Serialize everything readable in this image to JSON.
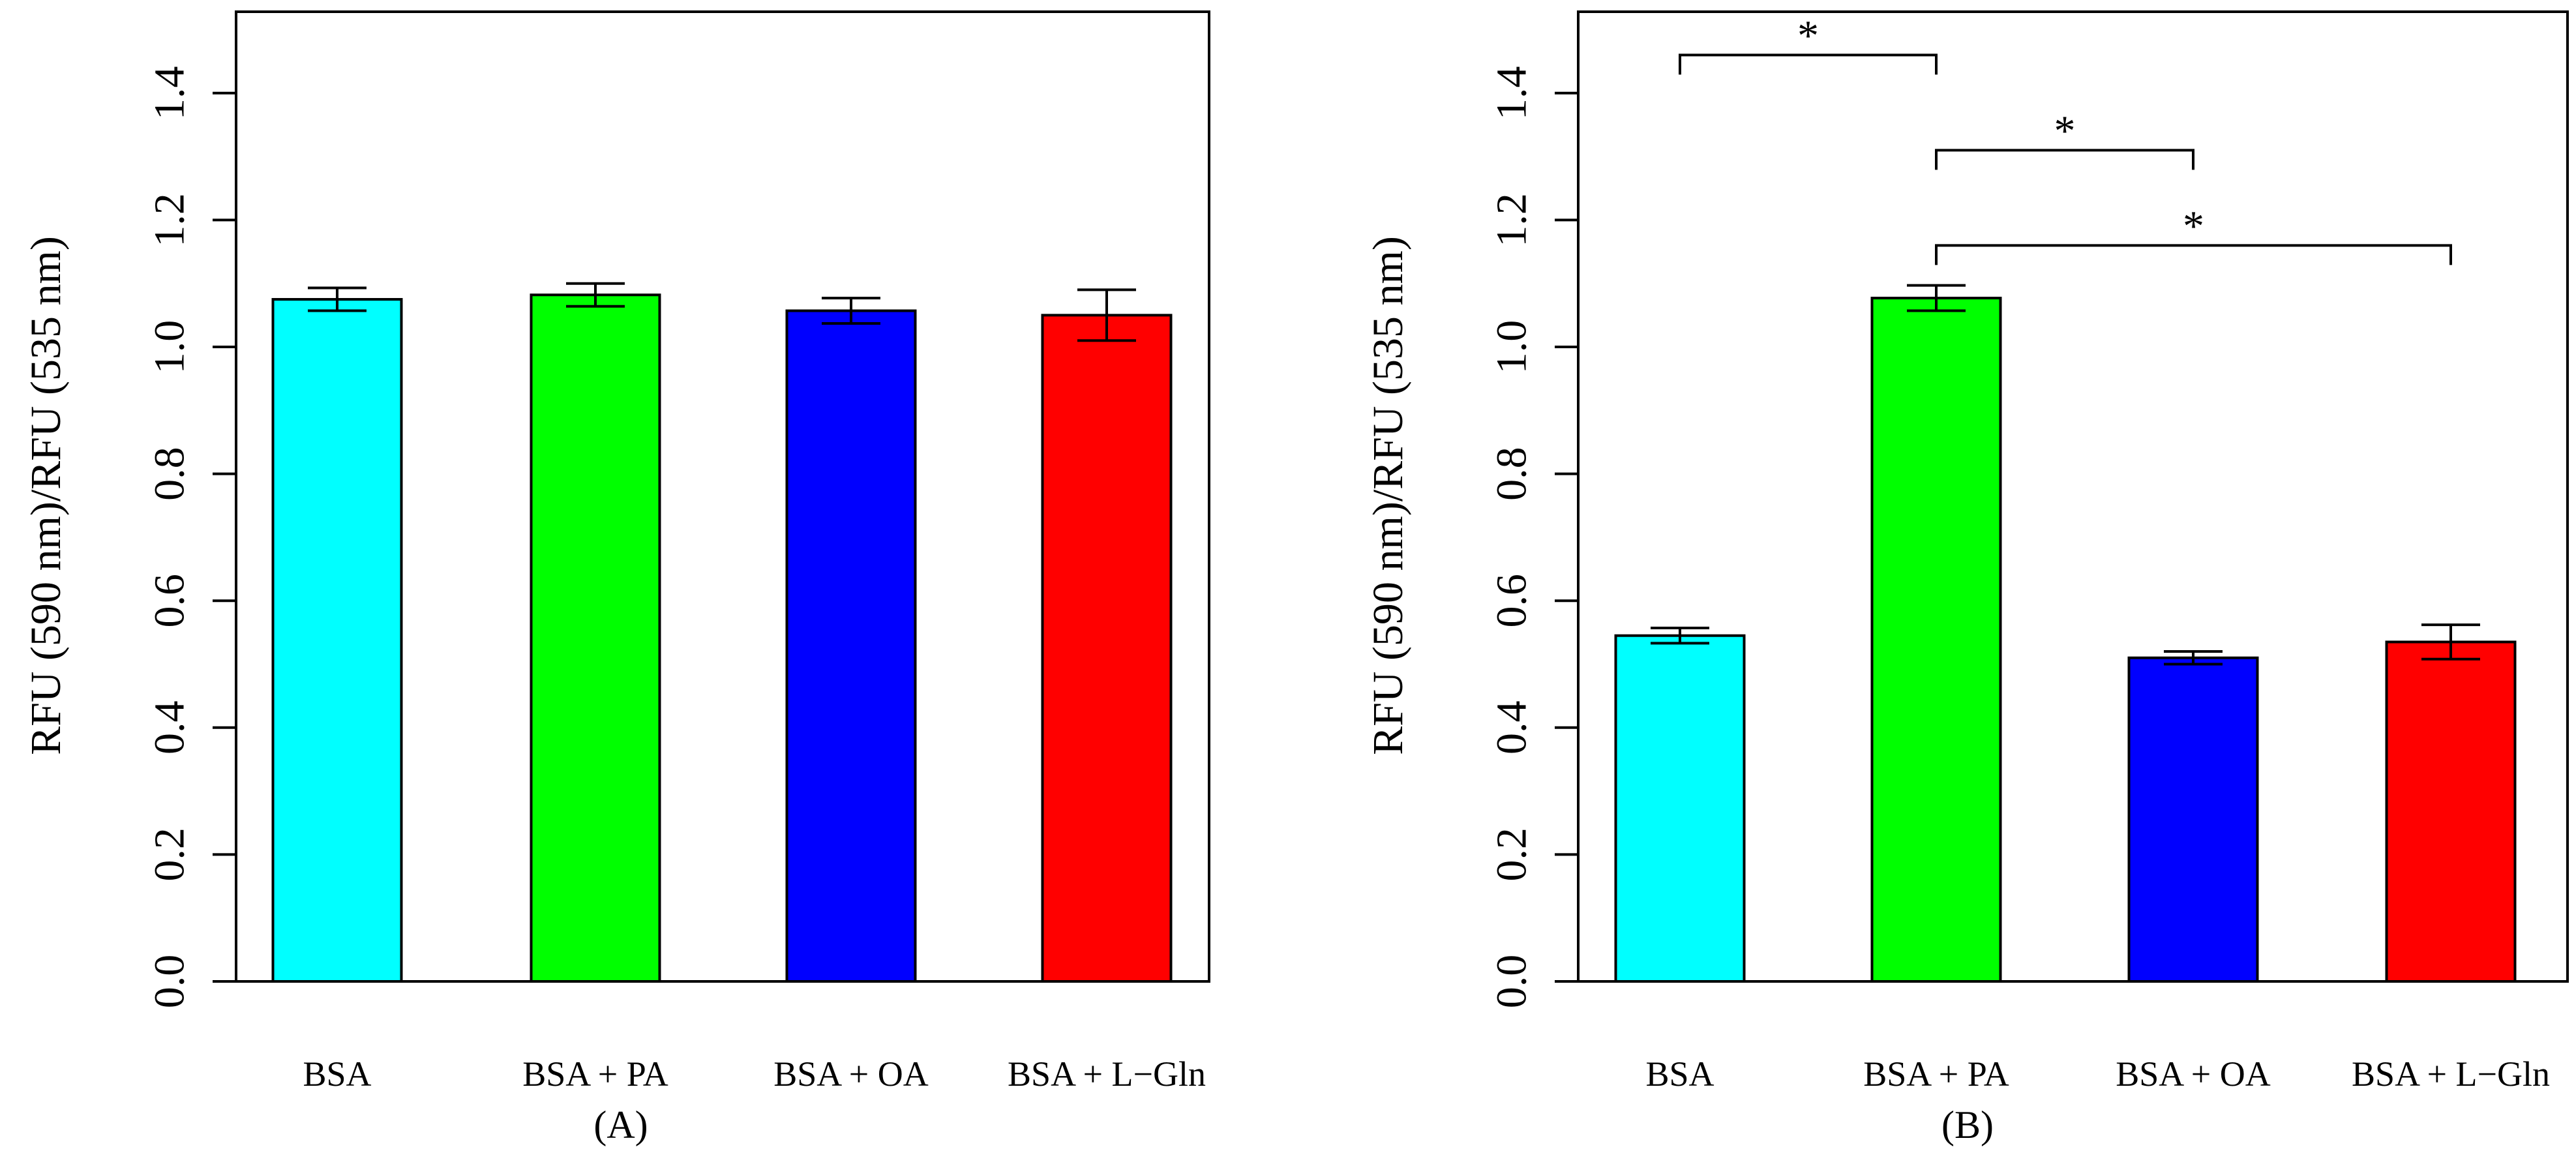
{
  "chart_data": [
    {
      "type": "bar",
      "panel_label": "(A)",
      "categories": [
        "BSA",
        "BSA + PA",
        "BSA + OA",
        "BSA + L−Gln"
      ],
      "values": [
        1.075,
        1.082,
        1.057,
        1.05
      ],
      "errors": [
        0.018,
        0.018,
        0.02,
        0.04
      ],
      "colors": [
        "#00ffff",
        "#00ff00",
        "#0000ff",
        "#ff0000"
      ],
      "ylabel": "RFU (590 nm)/RFU (535 nm)",
      "xlabel": "",
      "ylim": [
        0,
        1.54
      ],
      "yticks": [
        "0.0",
        "0.2",
        "0.4",
        "0.6",
        "0.8",
        "1.0",
        "1.2",
        "1.4"
      ],
      "significance": []
    },
    {
      "type": "bar",
      "panel_label": "(B)",
      "categories": [
        "BSA",
        "BSA + PA",
        "BSA + OA",
        "BSA + L−Gln"
      ],
      "values": [
        0.545,
        1.077,
        0.51,
        0.535
      ],
      "errors": [
        0.012,
        0.02,
        0.01,
        0.027
      ],
      "colors": [
        "#00ffff",
        "#00ff00",
        "#0000ff",
        "#ff0000"
      ],
      "ylabel": "RFU (590 nm)/RFU (535 nm)",
      "xlabel": "",
      "ylim": [
        0,
        1.54
      ],
      "yticks": [
        "0.0",
        "0.2",
        "0.4",
        "0.6",
        "0.8",
        "1.0",
        "1.2",
        "1.4"
      ],
      "significance": [
        {
          "from": 0,
          "to": 1,
          "y": 1.46,
          "label": "*"
        },
        {
          "from": 1,
          "to": 2,
          "y": 1.31,
          "label": "*"
        },
        {
          "from": 1,
          "to": 3,
          "y": 1.16,
          "label": "*"
        }
      ]
    }
  ]
}
